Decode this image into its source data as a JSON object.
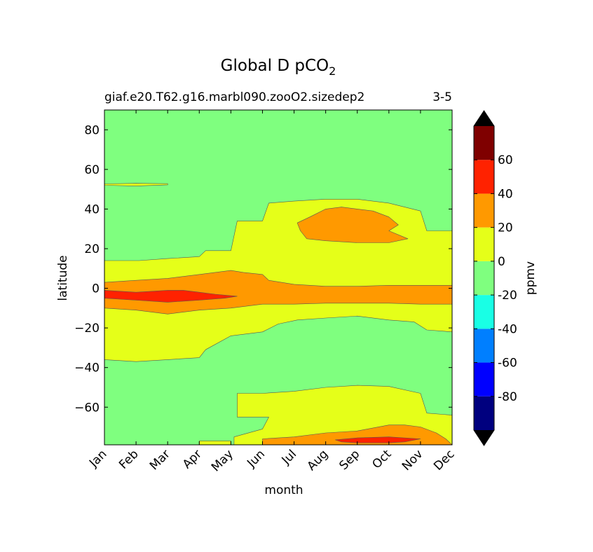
{
  "chart_data": {
    "type": "contour",
    "title": "Global D pCO",
    "title_subscript": "2",
    "left_subtitle": "giaf.e20.T62.g16.marbl090.zooO2.sizedep2",
    "right_subtitle": "3-5",
    "xlabel": "month",
    "ylabel": "latitude",
    "x_categories": [
      "Jan",
      "Feb",
      "Mar",
      "Apr",
      "May",
      "Jun",
      "Jul",
      "Aug",
      "Sep",
      "Oct",
      "Nov",
      "Dec"
    ],
    "xlim": [
      1,
      12
    ],
    "ylim": [
      -79,
      90
    ],
    "yticks": [
      80,
      60,
      40,
      20,
      0,
      -20,
      -40,
      -60
    ],
    "ytick_labels": [
      "80",
      "60",
      "40",
      "20",
      "0",
      "−20",
      "−40",
      "−60"
    ],
    "colorbar": {
      "label": "ppmv",
      "levels": [
        -100,
        -80,
        -60,
        -40,
        -20,
        0,
        20,
        40,
        60,
        80
      ],
      "tick_values": [
        60,
        40,
        20,
        0,
        -20,
        -40,
        -60,
        -80
      ],
      "tick_labels": [
        "60",
        "40",
        "20",
        "0",
        "-20",
        "-40",
        "-60",
        "-80"
      ],
      "extend": "both",
      "under_color": "#000000",
      "over_color": "#000000",
      "bands": [
        {
          "range": [
            -100,
            -80
          ],
          "color": "#00007f"
        },
        {
          "range": [
            -80,
            -60
          ],
          "color": "#0000ff"
        },
        {
          "range": [
            -60,
            -40
          ],
          "color": "#007fff"
        },
        {
          "range": [
            -40,
            -20
          ],
          "color": "#19ffe5"
        },
        {
          "range": [
            -20,
            0
          ],
          "color": "#7fff7f"
        },
        {
          "range": [
            0,
            20
          ],
          "color": "#e5ff19"
        },
        {
          "range": [
            20,
            40
          ],
          "color": "#ff9900"
        },
        {
          "range": [
            40,
            60
          ],
          "color": "#ff2200"
        },
        {
          "range": [
            60,
            80
          ],
          "color": "#7f0000"
        }
      ]
    },
    "background_band": {
      "range": [
        -20,
        0
      ],
      "color": "#7fff7f"
    },
    "regions": [
      {
        "level": "0 to 20",
        "color": "#e5ff19",
        "points": [
          [
            1,
            14
          ],
          [
            2.1,
            14
          ],
          [
            3,
            15
          ],
          [
            4,
            16
          ],
          [
            4.2,
            19
          ],
          [
            5,
            19
          ],
          [
            5.2,
            34
          ],
          [
            6,
            34
          ],
          [
            6.2,
            43
          ],
          [
            7,
            44
          ],
          [
            8,
            45
          ],
          [
            9,
            45
          ],
          [
            10,
            43
          ],
          [
            11,
            39
          ],
          [
            11.2,
            29
          ],
          [
            12,
            29
          ],
          [
            12,
            -22
          ],
          [
            11.2,
            -21
          ],
          [
            10.8,
            -17
          ],
          [
            10,
            -16
          ],
          [
            9,
            -14
          ],
          [
            8,
            -15
          ],
          [
            7.1,
            -16
          ],
          [
            6.5,
            -18
          ],
          [
            6,
            -22
          ],
          [
            5,
            -24
          ],
          [
            4.2,
            -31
          ],
          [
            4,
            -35
          ],
          [
            3,
            -36
          ],
          [
            2,
            -37
          ],
          [
            1,
            -36
          ]
        ]
      },
      {
        "level": "0 to 20",
        "color": "#e5ff19",
        "points": [
          [
            1,
            52.7
          ],
          [
            2,
            53
          ],
          [
            3,
            52.8
          ],
          [
            3,
            52.2
          ],
          [
            2,
            51.6
          ],
          [
            1,
            52
          ]
        ]
      },
      {
        "level": "0 to 20",
        "color": "#e5ff19",
        "points": [
          [
            5.2,
            -53
          ],
          [
            6,
            -53
          ],
          [
            7,
            -52
          ],
          [
            8,
            -50
          ],
          [
            9,
            -49
          ],
          [
            10,
            -49.5
          ],
          [
            11,
            -53
          ],
          [
            11.2,
            -63
          ],
          [
            12,
            -64
          ],
          [
            12,
            -79
          ],
          [
            5.1,
            -79
          ],
          [
            5.1,
            -75
          ],
          [
            6,
            -71
          ],
          [
            6.2,
            -65
          ],
          [
            5.2,
            -65
          ],
          [
            5.2,
            -60
          ]
        ]
      },
      {
        "level": "0 to 20",
        "color": "#e5ff19",
        "points": [
          [
            4,
            -77
          ],
          [
            5,
            -77
          ],
          [
            5,
            -79
          ],
          [
            4,
            -79
          ]
        ]
      },
      {
        "level": "20 to 40",
        "color": "#ff9900",
        "points": [
          [
            1,
            3
          ],
          [
            2,
            4
          ],
          [
            3,
            5
          ],
          [
            4,
            7
          ],
          [
            5,
            9
          ],
          [
            5.4,
            8
          ],
          [
            6,
            7
          ],
          [
            6.2,
            4
          ],
          [
            7,
            2
          ],
          [
            8,
            1
          ],
          [
            9,
            1
          ],
          [
            10,
            1.5
          ],
          [
            11,
            1.5
          ],
          [
            12,
            1.5
          ],
          [
            12,
            -8
          ],
          [
            11,
            -8
          ],
          [
            10,
            -7.5
          ],
          [
            9,
            -7.5
          ],
          [
            8,
            -7.5
          ],
          [
            7,
            -8
          ],
          [
            6,
            -8
          ],
          [
            5,
            -10
          ],
          [
            4,
            -11
          ],
          [
            3,
            -13
          ],
          [
            2,
            -11
          ],
          [
            1,
            -10
          ]
        ]
      },
      {
        "level": "20 to 40",
        "color": "#ff9900",
        "points": [
          [
            7.1,
            33
          ],
          [
            7.5,
            36
          ],
          [
            8,
            40
          ],
          [
            8.5,
            41
          ],
          [
            9,
            40
          ],
          [
            9.5,
            39
          ],
          [
            10,
            36
          ],
          [
            10.3,
            32
          ],
          [
            10,
            29
          ],
          [
            10.6,
            25
          ],
          [
            10,
            23
          ],
          [
            9,
            23
          ],
          [
            8,
            24
          ],
          [
            7.4,
            25
          ],
          [
            7.2,
            29
          ]
        ]
      },
      {
        "level": "20 to 40",
        "color": "#ff9900",
        "points": [
          [
            6,
            -76
          ],
          [
            7,
            -75
          ],
          [
            8,
            -73
          ],
          [
            9,
            -72
          ],
          [
            10,
            -69
          ],
          [
            10.5,
            -69
          ],
          [
            11,
            -70
          ],
          [
            11.5,
            -73
          ],
          [
            11.8,
            -76
          ],
          [
            12,
            -79
          ],
          [
            6,
            -79
          ]
        ]
      },
      {
        "level": "40 to 60",
        "color": "#ff2200",
        "points": [
          [
            1,
            -1
          ],
          [
            2,
            -2
          ],
          [
            3,
            -1
          ],
          [
            3.5,
            -1
          ],
          [
            4,
            -2
          ],
          [
            4.5,
            -3
          ],
          [
            5.2,
            -4
          ],
          [
            4.8,
            -5
          ],
          [
            4,
            -6
          ],
          [
            3,
            -7
          ],
          [
            2,
            -6
          ],
          [
            1,
            -5
          ]
        ]
      },
      {
        "level": "40 to 60",
        "color": "#ff2200",
        "points": [
          [
            8.3,
            -76.5
          ],
          [
            9,
            -75.5
          ],
          [
            10,
            -75
          ],
          [
            11,
            -76
          ],
          [
            10.5,
            -77.5
          ],
          [
            10,
            -78
          ],
          [
            9,
            -78
          ],
          [
            8.5,
            -77.5
          ]
        ]
      }
    ]
  }
}
